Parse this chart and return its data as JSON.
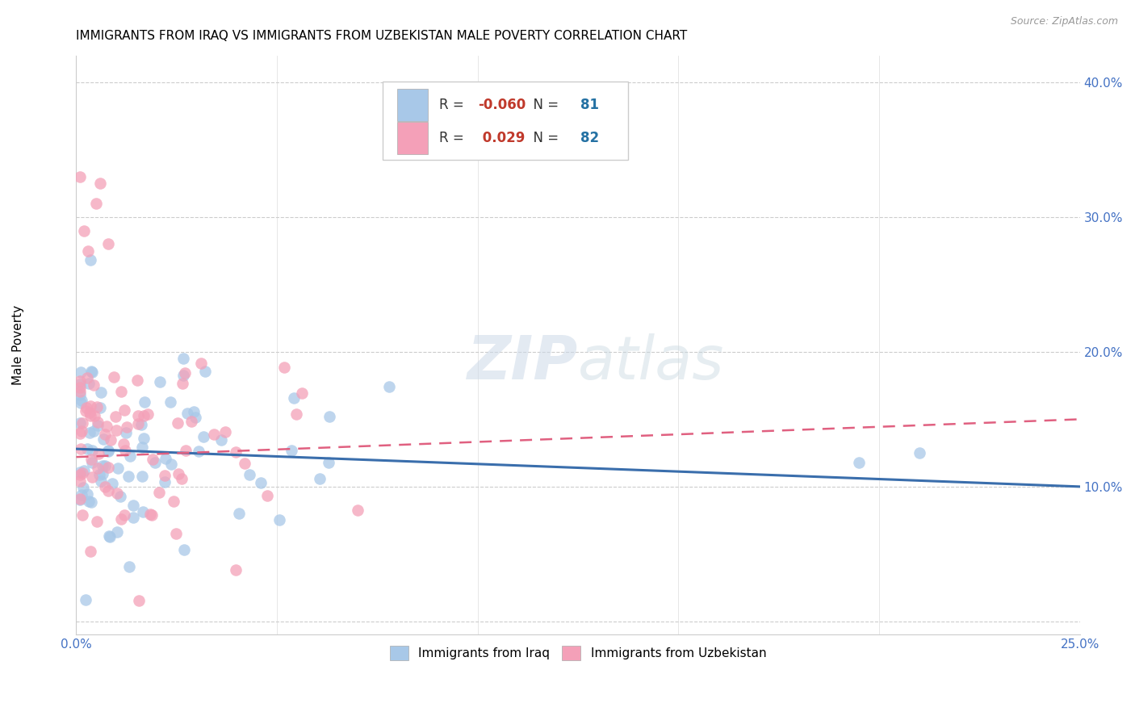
{
  "title": "IMMIGRANTS FROM IRAQ VS IMMIGRANTS FROM UZBEKISTAN MALE POVERTY CORRELATION CHART",
  "source": "Source: ZipAtlas.com",
  "ylabel": "Male Poverty",
  "xlim": [
    0.0,
    0.25
  ],
  "ylim": [
    -0.01,
    0.42
  ],
  "iraq_color": "#a8c8e8",
  "uzbekistan_color": "#f4a0b8",
  "iraq_line_color": "#3a6eac",
  "uzbekistan_line_color": "#e06080",
  "iraq_R": -0.06,
  "iraq_N": 81,
  "uzbekistan_R": 0.029,
  "uzbekistan_N": 82,
  "right_ytick_color": "#4472c4",
  "bottom_xtick_color": "#4472c4"
}
